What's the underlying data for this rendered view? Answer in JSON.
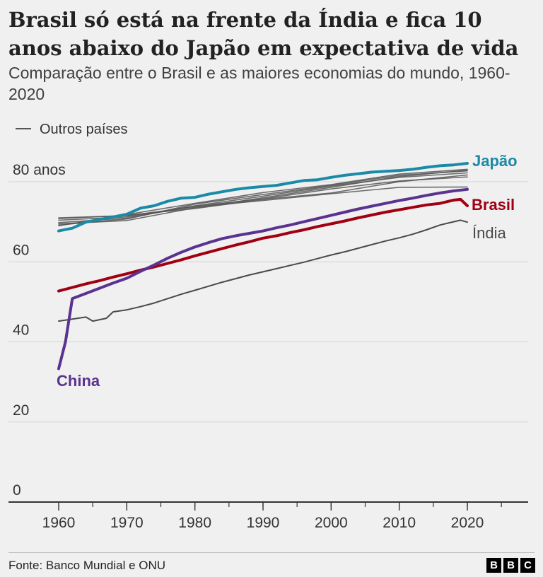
{
  "header": {
    "title": "Brasil só está na frente da Índia e fica 10 anos abaixo do Japão em expectativa de vida",
    "subtitle": "Comparação entre o Brasil e as maiores economias do mundo, 1960-2020"
  },
  "footer": {
    "source": "Fonte: Banco Mundial e ONU",
    "logo_letters": [
      "B",
      "B",
      "C"
    ]
  },
  "colors": {
    "Japão": "#1b8aa6",
    "Brasil": "#a00012",
    "China": "#5a3290",
    "Índia": "#4a4a4a",
    "Outros países": "#555555",
    "grid": "#d3d3d3",
    "axis": "#333333"
  },
  "chart_data": {
    "type": "line",
    "legend": {
      "label": "Outros países",
      "placement": "top-left"
    },
    "xlim": [
      1957,
      2028
    ],
    "ylim": [
      0,
      85
    ],
    "x_ticks": [
      1960,
      1970,
      1980,
      1990,
      2000,
      2010,
      2020
    ],
    "y_ticks": [
      {
        "value": 0,
        "label": "0"
      },
      {
        "value": 20,
        "label": "20"
      },
      {
        "value": 40,
        "label": "40"
      },
      {
        "value": 60,
        "label": "60"
      },
      {
        "value": 80,
        "label": "80 anos"
      }
    ],
    "grid": "horizontal",
    "series": [
      {
        "name": "Japão",
        "label_position": "end",
        "width": 4,
        "points": [
          [
            1960,
            67.7
          ],
          [
            1962,
            68.4
          ],
          [
            1964,
            69.9
          ],
          [
            1966,
            70.6
          ],
          [
            1968,
            71.2
          ],
          [
            1970,
            71.9
          ],
          [
            1972,
            73.4
          ],
          [
            1974,
            74.0
          ],
          [
            1976,
            75.1
          ],
          [
            1978,
            75.9
          ],
          [
            1980,
            76.1
          ],
          [
            1982,
            76.9
          ],
          [
            1984,
            77.5
          ],
          [
            1986,
            78.1
          ],
          [
            1988,
            78.5
          ],
          [
            1990,
            78.8
          ],
          [
            1992,
            79.1
          ],
          [
            1994,
            79.7
          ],
          [
            1996,
            80.3
          ],
          [
            1998,
            80.5
          ],
          [
            2000,
            81.1
          ],
          [
            2002,
            81.6
          ],
          [
            2004,
            82.0
          ],
          [
            2006,
            82.4
          ],
          [
            2008,
            82.6
          ],
          [
            2010,
            82.8
          ],
          [
            2012,
            83.1
          ],
          [
            2014,
            83.6
          ],
          [
            2016,
            84.0
          ],
          [
            2018,
            84.2
          ],
          [
            2020,
            84.6
          ]
        ]
      },
      {
        "name": "Brasil",
        "label_position": "end",
        "width": 4,
        "points": [
          [
            1960,
            52.7
          ],
          [
            1962,
            53.6
          ],
          [
            1964,
            54.5
          ],
          [
            1966,
            55.3
          ],
          [
            1968,
            56.2
          ],
          [
            1970,
            57.0
          ],
          [
            1972,
            57.9
          ],
          [
            1974,
            58.7
          ],
          [
            1976,
            59.6
          ],
          [
            1978,
            60.5
          ],
          [
            1980,
            61.5
          ],
          [
            1982,
            62.4
          ],
          [
            1984,
            63.3
          ],
          [
            1986,
            64.2
          ],
          [
            1988,
            65.0
          ],
          [
            1990,
            65.9
          ],
          [
            1992,
            66.5
          ],
          [
            1994,
            67.3
          ],
          [
            1996,
            68.0
          ],
          [
            1998,
            68.8
          ],
          [
            2000,
            69.5
          ],
          [
            2002,
            70.2
          ],
          [
            2004,
            71.0
          ],
          [
            2006,
            71.7
          ],
          [
            2008,
            72.4
          ],
          [
            2010,
            73.0
          ],
          [
            2012,
            73.6
          ],
          [
            2014,
            74.2
          ],
          [
            2016,
            74.6
          ],
          [
            2018,
            75.4
          ],
          [
            2019,
            75.6
          ],
          [
            2020,
            74.0
          ]
        ]
      },
      {
        "name": "China",
        "label_position": "start",
        "width": 4,
        "points": [
          [
            1960,
            33.3
          ],
          [
            1961,
            40.0
          ],
          [
            1962,
            50.8
          ],
          [
            1964,
            52.1
          ],
          [
            1966,
            53.4
          ],
          [
            1968,
            54.7
          ],
          [
            1970,
            55.9
          ],
          [
            1972,
            57.6
          ],
          [
            1974,
            59.2
          ],
          [
            1976,
            60.9
          ],
          [
            1978,
            62.4
          ],
          [
            1980,
            63.7
          ],
          [
            1982,
            64.8
          ],
          [
            1984,
            65.8
          ],
          [
            1986,
            66.5
          ],
          [
            1988,
            67.1
          ],
          [
            1990,
            67.7
          ],
          [
            1992,
            68.5
          ],
          [
            1994,
            69.2
          ],
          [
            1996,
            70.0
          ],
          [
            1998,
            70.8
          ],
          [
            2000,
            71.6
          ],
          [
            2002,
            72.4
          ],
          [
            2004,
            73.2
          ],
          [
            2006,
            73.9
          ],
          [
            2008,
            74.6
          ],
          [
            2010,
            75.3
          ],
          [
            2012,
            75.9
          ],
          [
            2014,
            76.6
          ],
          [
            2016,
            77.2
          ],
          [
            2018,
            77.7
          ],
          [
            2020,
            78.1
          ]
        ]
      },
      {
        "name": "Índia",
        "label_position": "end",
        "width": 2,
        "points": [
          [
            1960,
            45.2
          ],
          [
            1962,
            45.7
          ],
          [
            1964,
            46.2
          ],
          [
            1965,
            45.2
          ],
          [
            1967,
            45.9
          ],
          [
            1968,
            47.5
          ],
          [
            1970,
            48.0
          ],
          [
            1972,
            48.8
          ],
          [
            1974,
            49.7
          ],
          [
            1976,
            50.8
          ],
          [
            1978,
            51.9
          ],
          [
            1980,
            52.9
          ],
          [
            1982,
            53.9
          ],
          [
            1984,
            54.9
          ],
          [
            1986,
            55.8
          ],
          [
            1988,
            56.7
          ],
          [
            1990,
            57.5
          ],
          [
            1992,
            58.3
          ],
          [
            1994,
            59.1
          ],
          [
            1996,
            59.9
          ],
          [
            1998,
            60.8
          ],
          [
            2000,
            61.7
          ],
          [
            2002,
            62.5
          ],
          [
            2004,
            63.4
          ],
          [
            2006,
            64.3
          ],
          [
            2008,
            65.2
          ],
          [
            2010,
            66.0
          ],
          [
            2012,
            66.9
          ],
          [
            2014,
            68.0
          ],
          [
            2016,
            69.2
          ],
          [
            2018,
            70.0
          ],
          [
            2019,
            70.4
          ],
          [
            2020,
            69.9
          ]
        ]
      },
      {
        "name": "",
        "group": "Outros países",
        "width": 1.6,
        "points": [
          [
            1960,
            71.0
          ],
          [
            1970,
            71.5
          ],
          [
            1980,
            73.7
          ],
          [
            1990,
            75.3
          ],
          [
            2000,
            77.0
          ],
          [
            2010,
            78.6
          ],
          [
            2020,
            78.7
          ]
        ]
      },
      {
        "name": "",
        "group": "Outros países",
        "width": 1.6,
        "points": [
          [
            1960,
            70.4
          ],
          [
            1970,
            71.2
          ],
          [
            1980,
            73.9
          ],
          [
            1990,
            75.7
          ],
          [
            2000,
            78.2
          ],
          [
            2010,
            80.2
          ],
          [
            2020,
            81.2
          ]
        ]
      },
      {
        "name": "",
        "group": "Outros países",
        "width": 1.6,
        "points": [
          [
            1960,
            69.8
          ],
          [
            1970,
            70.9
          ],
          [
            1980,
            74.0
          ],
          [
            1990,
            76.4
          ],
          [
            2000,
            78.9
          ],
          [
            2010,
            81.1
          ],
          [
            2020,
            82.2
          ]
        ]
      },
      {
        "name": "",
        "group": "Outros países",
        "width": 1.6,
        "points": [
          [
            1960,
            69.2
          ],
          [
            1970,
            70.7
          ],
          [
            1980,
            74.4
          ],
          [
            1990,
            76.8
          ],
          [
            2000,
            79.1
          ],
          [
            2010,
            81.6
          ],
          [
            2020,
            82.7
          ]
        ]
      },
      {
        "name": "",
        "group": "Outros países",
        "width": 1.6,
        "points": [
          [
            1960,
            69.0
          ],
          [
            1970,
            71.8
          ],
          [
            1980,
            74.6
          ],
          [
            1990,
            77.3
          ],
          [
            2000,
            79.3
          ],
          [
            2010,
            81.9
          ],
          [
            2020,
            83.1
          ]
        ]
      },
      {
        "name": "",
        "group": "Outros países",
        "width": 1.6,
        "points": [
          [
            1960,
            70.8
          ],
          [
            1970,
            71.6
          ],
          [
            1980,
            73.3
          ],
          [
            1990,
            75.6
          ],
          [
            2000,
            77.2
          ],
          [
            2010,
            80.0
          ],
          [
            2020,
            81.7
          ]
        ]
      },
      {
        "name": "",
        "group": "Outros países",
        "width": 1.6,
        "points": [
          [
            1960,
            69.5
          ],
          [
            1970,
            70.3
          ],
          [
            1980,
            73.5
          ],
          [
            1990,
            76.0
          ],
          [
            2000,
            78.6
          ],
          [
            2010,
            81.3
          ],
          [
            2020,
            82.9
          ]
        ]
      }
    ]
  }
}
